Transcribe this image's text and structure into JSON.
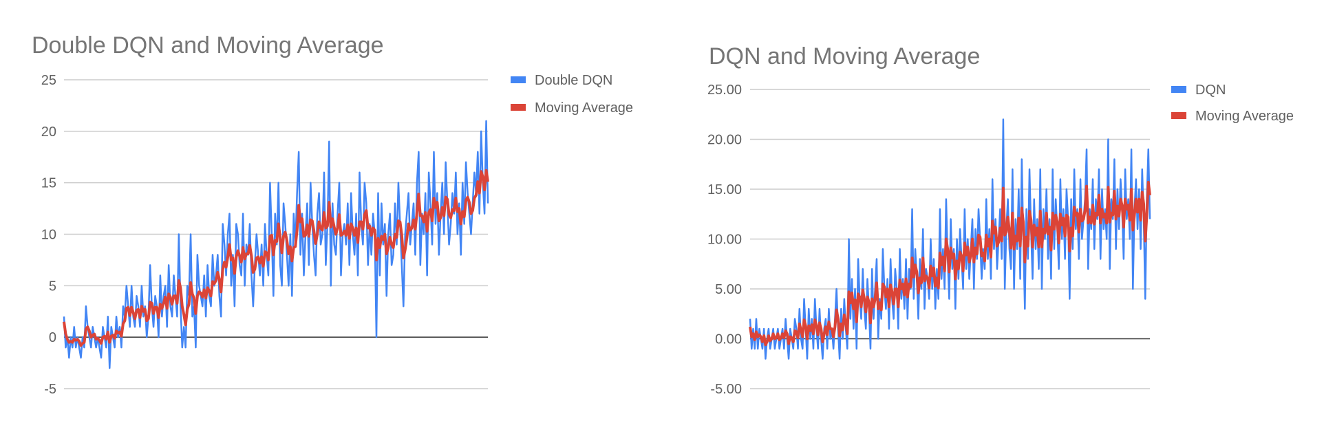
{
  "chart_data": [
    {
      "type": "line",
      "title": "Double DQN and Moving Average",
      "ylim": [
        -5,
        25
      ],
      "yticks": [
        25,
        20,
        15,
        10,
        5,
        0,
        -5
      ],
      "ytick_labels": [
        "25",
        "20",
        "15",
        "10",
        "5",
        "0",
        "-5"
      ],
      "grid": true,
      "legend": "right",
      "series": [
        {
          "name": "Double DQN",
          "color": "#4285f4",
          "values": [
            2,
            -1,
            0,
            -2,
            0,
            -1,
            1,
            -1,
            0,
            -1,
            -2,
            0,
            -1,
            3,
            1,
            0,
            -1,
            1,
            0,
            -1,
            0,
            -1,
            -2,
            1,
            0,
            -1,
            2,
            -3,
            1,
            0,
            -1,
            2,
            0,
            1,
            -1,
            3,
            2,
            5,
            3,
            1,
            5,
            2,
            1,
            4,
            3,
            1,
            5,
            2,
            3,
            0,
            2,
            7,
            3,
            1,
            4,
            3,
            0,
            6,
            2,
            4,
            5,
            1,
            7,
            3,
            2,
            6,
            4,
            2,
            10,
            3,
            -1,
            1,
            -1,
            5,
            4,
            10,
            2,
            3,
            -1,
            8,
            5,
            4,
            3,
            6,
            2,
            7,
            4,
            3,
            8,
            5,
            6,
            8,
            4,
            2,
            11,
            9,
            6,
            10,
            12,
            5,
            8,
            3,
            11,
            10,
            7,
            6,
            12,
            5,
            9,
            8,
            11,
            6,
            3,
            7,
            10,
            8,
            6,
            9,
            5,
            11,
            8,
            6,
            15,
            10,
            4,
            12,
            9,
            15,
            7,
            5,
            13,
            11,
            8,
            5,
            10,
            4,
            12,
            9,
            14,
            18,
            8,
            12,
            6,
            10,
            13,
            7,
            15,
            11,
            8,
            6,
            12,
            14,
            9,
            10,
            16,
            7,
            11,
            19,
            5,
            13,
            9,
            8,
            12,
            15,
            6,
            10,
            11,
            9,
            13,
            7,
            14,
            10,
            8,
            12,
            6,
            16,
            11,
            9,
            15,
            13,
            7,
            11,
            8,
            12,
            10,
            0,
            14,
            6,
            13,
            9,
            11,
            4,
            10,
            12,
            7,
            8,
            13,
            9,
            15,
            11,
            7,
            3,
            10,
            12,
            14,
            9,
            11,
            13,
            8,
            15,
            18,
            7,
            12,
            10,
            14,
            6,
            16,
            13,
            9,
            18,
            11,
            14,
            8,
            12,
            15,
            10,
            17,
            13,
            9,
            11,
            14,
            12,
            16,
            10,
            13,
            8,
            15,
            11,
            17,
            14,
            12,
            10,
            13,
            16,
            14,
            18,
            12,
            20,
            15,
            12,
            21,
            13
          ]
        },
        {
          "name": "Moving Average",
          "color": "#db4437",
          "values": [
            1.5,
            0.3,
            -0.2,
            -0.5,
            -0.4,
            -0.5,
            -0.2,
            -0.3,
            -0.2,
            -0.4,
            -0.8,
            -0.6,
            -0.5,
            0.8,
            1.0,
            0.6,
            0.0,
            0.2,
            0.3,
            -0.2,
            -0.1,
            -0.3,
            -0.6,
            0.0,
            0.1,
            -0.2,
            0.5,
            -0.5,
            0.1,
            0.2,
            -0.1,
            0.6,
            0.4,
            0.5,
            0.1,
            1.3,
            1.6,
            2.8,
            2.9,
            2.1,
            2.9,
            2.4,
            1.8,
            2.6,
            2.7,
            1.9,
            3.0,
            2.5,
            2.7,
            1.6,
            1.8,
            3.4,
            3.3,
            2.3,
            2.9,
            2.9,
            1.9,
            3.2,
            2.8,
            3.3,
            3.9,
            2.8,
            4.2,
            3.9,
            3.2,
            4.0,
            4.0,
            3.3,
            5.5,
            4.8,
            3.0,
            2.2,
            1.2,
            2.7,
            3.2,
            5.3,
            4.2,
            3.8,
            2.3,
            4.0,
            4.4,
            4.3,
            3.9,
            4.6,
            3.8,
            4.8,
            4.5,
            4.0,
            5.4,
            5.2,
            5.5,
            6.3,
            5.6,
            4.4,
            6.6,
            7.3,
            6.8,
            7.8,
            9.0,
            7.5,
            7.7,
            6.2,
            7.8,
            8.4,
            7.9,
            7.3,
            8.7,
            7.6,
            8.1,
            8.1,
            8.9,
            7.9,
            6.3,
            6.6,
            7.7,
            7.8,
            7.2,
            7.8,
            6.9,
            8.3,
            8.2,
            7.5,
            9.8,
            9.9,
            8.0,
            9.4,
            9.3,
            11.0,
            9.7,
            8.2,
            9.8,
            10.2,
            9.4,
            8.1,
            8.8,
            7.4,
            8.7,
            8.8,
            10.4,
            12.8,
            11.2,
            11.5,
            9.8,
            9.9,
            10.9,
            9.8,
            11.4,
            11.3,
            10.3,
            9.1,
            10.0,
            11.2,
            10.6,
            10.4,
            12.1,
            10.6,
            10.8,
            13.1,
            10.7,
            11.5,
            10.7,
            10.0,
            10.6,
            11.9,
            9.9,
            10.0,
            10.3,
            9.9,
            10.9,
            9.6,
            11.0,
            10.6,
            9.9,
            10.6,
            9.2,
            11.2,
            11.2,
            10.5,
            11.9,
            12.3,
            10.6,
            10.8,
            9.9,
            10.6,
            10.4,
            7.5,
            9.6,
            8.7,
            9.8,
            9.5,
            10.0,
            8.1,
            8.7,
            9.7,
            9.0,
            8.7,
            10.0,
            9.7,
            11.3,
            11.2,
            9.9,
            7.7,
            8.5,
            9.6,
            11.0,
            10.4,
            10.6,
            11.4,
            10.5,
            12.1,
            13.9,
            11.8,
            11.8,
            11.2,
            12.1,
            10.3,
            12.1,
            12.4,
            11.3,
            13.5,
            12.6,
            13.1,
            11.3,
            11.6,
            12.6,
            11.8,
            13.6,
            13.4,
            11.9,
            11.6,
            12.4,
            12.3,
            13.5,
            12.2,
            12.5,
            11.0,
            12.2,
            11.7,
            13.3,
            13.6,
            13.1,
            12.0,
            12.3,
            13.5,
            13.8,
            15.1,
            14.0,
            16.1,
            15.6,
            14.3,
            16.2,
            15.1
          ]
        }
      ]
    },
    {
      "type": "line",
      "title": "DQN and Moving Average",
      "ylim": [
        -5,
        25
      ],
      "yticks": [
        25,
        20,
        15,
        10,
        5,
        0,
        -5
      ],
      "ytick_labels": [
        "25.00",
        "20.00",
        "15.00",
        "10.00",
        "5.00",
        "0.00",
        "-5.00"
      ],
      "grid": true,
      "legend": "right",
      "series": [
        {
          "name": "DQN",
          "color": "#4285f4",
          "values": [
            2,
            -1,
            1,
            -1,
            2,
            -1,
            1,
            0,
            -1,
            1,
            -2,
            0,
            1,
            -1,
            0,
            1,
            -1,
            0,
            1,
            -1,
            0,
            1,
            -1,
            2,
            0,
            -2,
            1,
            0,
            -1,
            2,
            1,
            -1,
            3,
            0,
            -1,
            4,
            1,
            -2,
            3,
            0,
            2,
            -1,
            4,
            1,
            -1,
            3,
            0,
            -2,
            1,
            2,
            -1,
            3,
            0,
            1,
            -1,
            2,
            5,
            1,
            -2,
            3,
            0,
            4,
            1,
            -1,
            10,
            2,
            6,
            1,
            5,
            -1,
            8,
            4,
            2,
            7,
            3,
            1,
            6,
            3,
            -1,
            7,
            2,
            5,
            8,
            0,
            4,
            2,
            9,
            5,
            3,
            6,
            1,
            8,
            4,
            2,
            7,
            5,
            1,
            9,
            4,
            6,
            3,
            8,
            2,
            7,
            5,
            13,
            4,
            9,
            6,
            2,
            8,
            5,
            11,
            3,
            7,
            6,
            4,
            10,
            5,
            8,
            3,
            7,
            4,
            13,
            6,
            9,
            5,
            14,
            8,
            4,
            12,
            7,
            9,
            3,
            10,
            6,
            11,
            8,
            5,
            13,
            7,
            10,
            6,
            9,
            12,
            5,
            11,
            8,
            13,
            10,
            6,
            9,
            7,
            14,
            8,
            11,
            6,
            16,
            9,
            12,
            7,
            10,
            13,
            8,
            22,
            5,
            11,
            14,
            9,
            7,
            17,
            5,
            12,
            9,
            15,
            6,
            18,
            10,
            3,
            13,
            8,
            17,
            11,
            6,
            14,
            9,
            12,
            7,
            17,
            5,
            13,
            10,
            15,
            8,
            12,
            6,
            17,
            9,
            14,
            11,
            7,
            16,
            10,
            13,
            8,
            15,
            12,
            4,
            14,
            9,
            17,
            11,
            13,
            8,
            16,
            10,
            12,
            14,
            19,
            7,
            13,
            11,
            16,
            9,
            14,
            12,
            17,
            8,
            15,
            11,
            13,
            10,
            20,
            7,
            14,
            12,
            18,
            9,
            15,
            11,
            16,
            13,
            8,
            17,
            12,
            14,
            10,
            19,
            5,
            13,
            16,
            11,
            15,
            9,
            17,
            12,
            4,
            14,
            19,
            12
          ]
        },
        {
          "name": "Moving Average",
          "color": "#db4437",
          "values": [
            1.2,
            0.2,
            0.5,
            -0.1,
            0.7,
            0.2,
            0.4,
            0.2,
            -0.3,
            0.3,
            -0.6,
            -0.3,
            0.3,
            -0.2,
            0.0,
            0.5,
            0.0,
            0.1,
            0.5,
            -0.1,
            0.1,
            0.5,
            0.1,
            0.8,
            0.5,
            -0.5,
            0.2,
            0.1,
            -0.3,
            0.8,
            0.7,
            0.1,
            1.5,
            0.9,
            0.2,
            1.9,
            1.3,
            0.0,
            1.3,
            0.8,
            1.4,
            0.5,
            1.9,
            1.3,
            0.4,
            1.6,
            1.0,
            -0.3,
            0.5,
            1.2,
            0.4,
            1.7,
            1.0,
            1.0,
            0.2,
            1.2,
            2.9,
            2.0,
            0.3,
            1.5,
            0.9,
            2.4,
            1.6,
            0.5,
            4.7,
            3.6,
            4.6,
            3.0,
            3.9,
            1.7,
            4.5,
            4.2,
            3.2,
            4.9,
            4.0,
            2.7,
            4.2,
            3.7,
            1.6,
            4.0,
            3.2,
            4.0,
            5.6,
            3.0,
            3.6,
            2.9,
            5.5,
            5.2,
            4.2,
            5.0,
            3.2,
            5.4,
            4.7,
            3.5,
            5.0,
            5.0,
            3.2,
            5.9,
            5.0,
            5.5,
            4.4,
            6.0,
            4.2,
            5.5,
            5.2,
            8.1,
            6.2,
            7.4,
            6.7,
            4.6,
            6.1,
            5.6,
            8.1,
            5.8,
            6.3,
            6.1,
            5.1,
            7.3,
            6.3,
            7.1,
            5.3,
            6.1,
            5.1,
            8.6,
            7.4,
            8.2,
            6.8,
            10.0,
            9.0,
            6.7,
            9.1,
            8.1,
            8.5,
            6.0,
            7.8,
            7.0,
            8.7,
            8.3,
            6.8,
            9.6,
            8.4,
            9.2,
            7.7,
            8.3,
            10.0,
            7.7,
            9.1,
            8.5,
            10.4,
            10.2,
            8.3,
            8.6,
            7.8,
            10.4,
            9.3,
            10.0,
            8.2,
            11.8,
            10.6,
            11.2,
            9.3,
            9.7,
            11.1,
            9.8,
            15.1,
            10.4,
            10.7,
            12.2,
            10.8,
            9.1,
            12.6,
            9.0,
            10.3,
            9.8,
            12.1,
            9.3,
            13.1,
            11.7,
            7.7,
            10.2,
            9.3,
            12.8,
            11.9,
            9.2,
            11.4,
            10.4,
            11.1,
            9.2,
            12.8,
            9.2,
            11.0,
            10.6,
            12.6,
            10.5,
            11.2,
            8.9,
            12.6,
            11.0,
            12.4,
            11.7,
            9.6,
            12.5,
            11.4,
            12.1,
            10.3,
            12.4,
            12.2,
            8.8,
            11.1,
            10.3,
            13.2,
            12.4,
            12.6,
            10.7,
            13.0,
            11.8,
            12.0,
            12.9,
            15.3,
            11.6,
            12.2,
            11.6,
            13.4,
            11.5,
            12.6,
            12.4,
            14.4,
            11.6,
            13.0,
            12.2,
            12.5,
            11.6,
            15.2,
            11.7,
            12.6,
            12.4,
            14.8,
            12.0,
            13.3,
            12.3,
            14.0,
            13.4,
            11.2,
            14.0,
            13.0,
            13.4,
            11.9,
            15.0,
            10.9,
            12.4,
            14.0,
            12.7,
            14.0,
            11.9,
            14.7,
            13.5,
            9.8,
            12.4,
            15.7,
            14.4
          ]
        }
      ]
    }
  ]
}
